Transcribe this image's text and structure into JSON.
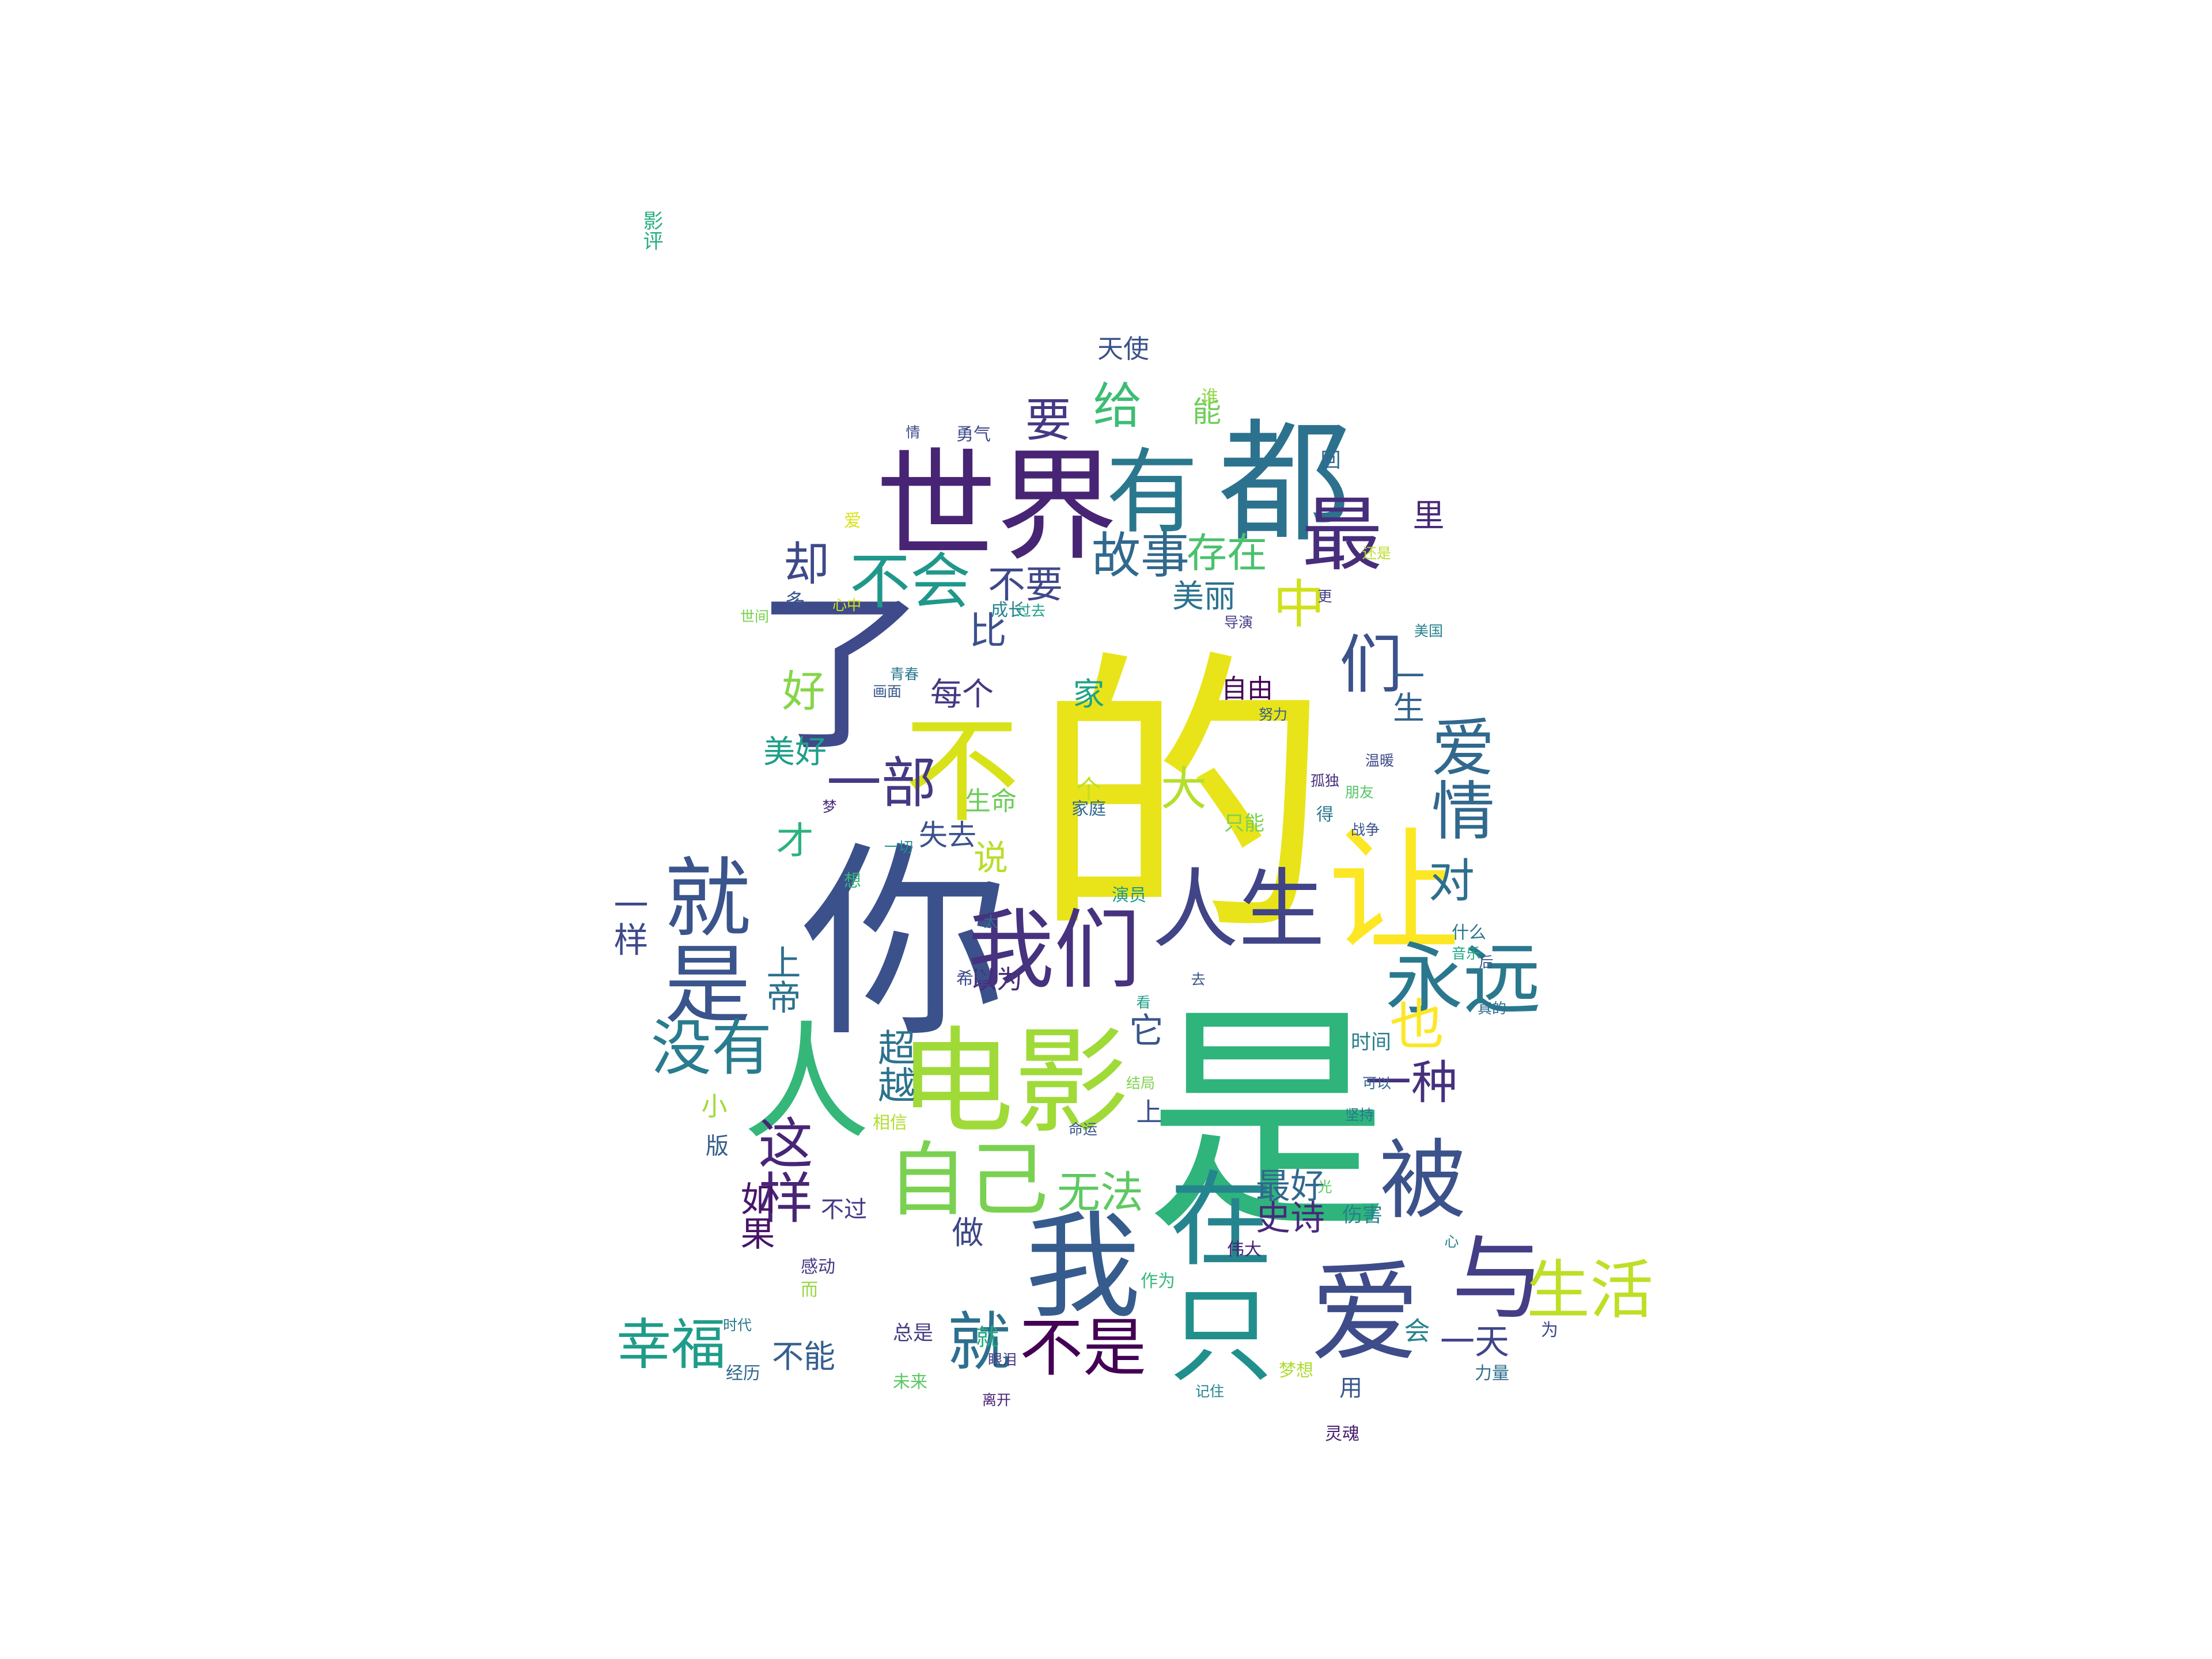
{
  "words": [
    {
      "t": "的",
      "c": "#e8e419"
    },
    {
      "t": "是",
      "c": "#2fb47c"
    },
    {
      "t": "你",
      "c": "#3b518b"
    },
    {
      "t": "了",
      "c": "#3e4a89"
    },
    {
      "t": "世界",
      "c": "#482475"
    },
    {
      "t": "都",
      "c": "#2c728e"
    },
    {
      "t": "有",
      "c": "#2a788e"
    },
    {
      "t": "电影",
      "c": "#a0da39"
    },
    {
      "t": "人",
      "c": "#35b779"
    },
    {
      "t": "我们",
      "c": "#46327e"
    },
    {
      "t": "人生",
      "c": "#414487"
    },
    {
      "t": "让",
      "c": "#fde725"
    },
    {
      "t": "不",
      "c": "#d8e219"
    },
    {
      "t": "我",
      "c": "#365c8d"
    },
    {
      "t": "在",
      "c": "#25858e"
    },
    {
      "t": "爱",
      "c": "#3e4c8a"
    },
    {
      "t": "与",
      "c": "#433e85"
    },
    {
      "t": "只",
      "c": "#21908d"
    },
    {
      "t": "就是",
      "c": "#3a548c"
    },
    {
      "t": "永远",
      "c": "#2a788e"
    },
    {
      "t": "被",
      "c": "#3b528b"
    },
    {
      "t": "自己",
      "c": "#7ad151"
    },
    {
      "t": "生活",
      "c": "#bddf26"
    },
    {
      "t": "最",
      "c": "#472d7b"
    },
    {
      "t": "不会",
      "c": "#1f988b"
    },
    {
      "t": "故事",
      "c": "#31688e"
    },
    {
      "t": "不是",
      "c": "#440154"
    },
    {
      "t": "就",
      "c": "#2d708e"
    },
    {
      "t": "没有",
      "c": "#287c8e"
    },
    {
      "t": "这样",
      "c": "#482576"
    },
    {
      "t": "幸福",
      "c": "#1e9c89"
    },
    {
      "t": "一部",
      "c": "#443a83"
    },
    {
      "t": "爱情",
      "c": "#31688e"
    },
    {
      "t": "们",
      "c": "#3b528b"
    },
    {
      "t": "中",
      "c": "#d0e11c"
    },
    {
      "t": "大",
      "c": "#b5de2b"
    },
    {
      "t": "给",
      "c": "#3dbc74"
    },
    {
      "t": "要",
      "c": "#443983"
    },
    {
      "t": "却",
      "c": "#3e4989"
    },
    {
      "t": "好",
      "c": "#86d549"
    },
    {
      "t": "也",
      "c": "#fde725"
    },
    {
      "t": "对",
      "c": "#2e6f8e"
    },
    {
      "t": "一种",
      "c": "#46307e"
    },
    {
      "t": "无法",
      "c": "#5ec962"
    },
    {
      "t": "存在",
      "c": "#4ac16d"
    },
    {
      "t": "不要",
      "c": "#3f4889"
    },
    {
      "t": "美丽",
      "c": "#2c728e"
    },
    {
      "t": "比",
      "c": "#3b518b"
    },
    {
      "t": "每个",
      "c": "#453781"
    },
    {
      "t": "美好",
      "c": "#1f9e89"
    },
    {
      "t": "才",
      "c": "#2db27d"
    },
    {
      "t": "说",
      "c": "#b8de29"
    },
    {
      "t": "失去",
      "c": "#3b528b"
    },
    {
      "t": "生命",
      "c": "#6ccd5a"
    },
    {
      "t": "它",
      "c": "#39568c"
    },
    {
      "t": "最好",
      "c": "#31688e"
    },
    {
      "t": "史诗",
      "c": "#472a7a"
    },
    {
      "t": "一样",
      "c": "#3e4a89"
    },
    {
      "t": "一生",
      "c": "#33638d"
    },
    {
      "t": "上帝",
      "c": "#2d708e"
    },
    {
      "t": "超越",
      "c": "#2c728e"
    },
    {
      "t": "如果",
      "c": "#481467"
    },
    {
      "t": "做",
      "c": "#3f4788"
    },
    {
      "t": "一天",
      "c": "#404588"
    },
    {
      "t": "不能",
      "c": "#355f8d"
    },
    {
      "t": "自由",
      "c": "#440154"
    },
    {
      "t": "天使",
      "c": "#3b528b"
    },
    {
      "t": "能",
      "c": "#6ece58"
    },
    {
      "t": "里",
      "c": "#482878"
    },
    {
      "t": "小",
      "c": "#a2da37"
    },
    {
      "t": "上",
      "c": "#3b528b"
    },
    {
      "t": "家",
      "c": "#20a386"
    },
    {
      "t": "个",
      "c": "#c2df23"
    },
    {
      "t": "时间",
      "c": "#287d8e"
    },
    {
      "t": "以为",
      "c": "#472d7b"
    },
    {
      "t": "会",
      "c": "#26828e"
    },
    {
      "t": "用",
      "c": "#39568c"
    },
    {
      "t": "伤害",
      "c": "#26828e"
    },
    {
      "t": "不过",
      "c": "#443983"
    },
    {
      "t": "就",
      "c": "#25ab82"
    },
    {
      "t": "总是",
      "c": "#433e85"
    },
    {
      "t": "为",
      "c": "#3f4889"
    },
    {
      "t": "影评",
      "c": "#29af7f"
    },
    {
      "t": "只能",
      "c": "#7ad151"
    },
    {
      "t": "家庭",
      "c": "#31688e"
    },
    {
      "t": "版",
      "c": "#365d8d"
    },
    {
      "t": "伟大",
      "c": "#482475"
    },
    {
      "t": "作为",
      "c": "#35b779"
    },
    {
      "t": "多",
      "c": "#3b528b"
    },
    {
      "t": "演员",
      "c": "#1f9a8a"
    },
    {
      "t": "什么",
      "c": "#2a778e"
    },
    {
      "t": "梦想",
      "c": "#addc30"
    },
    {
      "t": "经历",
      "c": "#31688e"
    },
    {
      "t": "希望",
      "c": "#3d4d8a"
    },
    {
      "t": "感动",
      "c": "#453882"
    },
    {
      "t": "未来",
      "c": "#5ac864"
    },
    {
      "t": "成长",
      "c": "#26828e"
    },
    {
      "t": "相信",
      "c": "#b0dd2f"
    },
    {
      "t": "勇气",
      "c": "#3f4889"
    },
    {
      "t": "力量",
      "c": "#2d708e"
    },
    {
      "t": "灵魂",
      "c": "#481f70"
    },
    {
      "t": "过去",
      "c": "#1fa188"
    },
    {
      "t": "努力",
      "c": "#355f8d"
    },
    {
      "t": "青春",
      "c": "#2a788e"
    },
    {
      "t": "世间",
      "c": "#7ad151"
    },
    {
      "t": "孤独",
      "c": "#472c7a"
    },
    {
      "t": "命运",
      "c": "#3a548c"
    },
    {
      "t": "心中",
      "c": "#d2e21b"
    },
    {
      "t": "美国",
      "c": "#26828e"
    },
    {
      "t": "导演",
      "c": "#433d84"
    },
    {
      "t": "画面",
      "c": "#39568c"
    },
    {
      "t": "音乐",
      "c": "#22a884"
    },
    {
      "t": "真的",
      "c": "#2e6e8e"
    },
    {
      "t": "结局",
      "c": "#7fd34e"
    },
    {
      "t": "温暖",
      "c": "#3e4a89"
    },
    {
      "t": "记住",
      "c": "#25858e"
    },
    {
      "t": "离开",
      "c": "#482173"
    },
    {
      "t": "时代",
      "c": "#287c8e"
    },
    {
      "t": "朋友",
      "c": "#56c667"
    },
    {
      "t": "坚持",
      "c": "#2b758e"
    },
    {
      "t": "眼泪",
      "c": "#443a83"
    },
    {
      "t": "可以",
      "c": "#31688e"
    },
    {
      "t": "还是",
      "c": "#b8de29"
    },
    {
      "t": "一切",
      "c": "#21918c"
    },
    {
      "t": "战争",
      "c": "#3b528b"
    },
    {
      "t": "得",
      "c": "#2a788e"
    },
    {
      "t": "想",
      "c": "#35b779"
    },
    {
      "t": "更",
      "c": "#433e85"
    },
    {
      "t": "去",
      "c": "#3b528b"
    },
    {
      "t": "看",
      "c": "#1f9e89"
    },
    {
      "t": "太",
      "c": "#2d708e"
    },
    {
      "t": "爱",
      "c": "#d8e219"
    },
    {
      "t": "谁",
      "c": "#8fd744"
    },
    {
      "t": "情",
      "c": "#3e4a89"
    },
    {
      "t": "后",
      "c": "#39568c"
    },
    {
      "t": "而",
      "c": "#95d840"
    },
    {
      "t": "心",
      "c": "#26828e"
    },
    {
      "t": "梦",
      "c": "#482878"
    },
    {
      "t": "回",
      "c": "#31688e"
    },
    {
      "t": "光",
      "c": "#5ec962"
    }
  ]
}
